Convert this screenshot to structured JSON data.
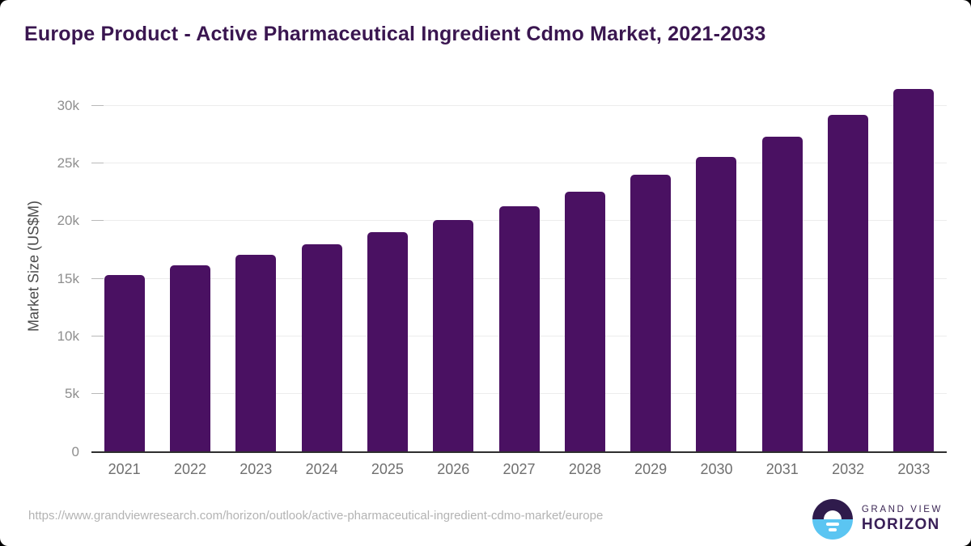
{
  "header": {
    "title": "Europe Product - Active Pharmaceutical Ingredient Cdmo Market, 2021-2033"
  },
  "chart_data": {
    "type": "bar",
    "title": "Europe Product - Active Pharmaceutical Ingredient Cdmo Market, 2021-2033",
    "categories": [
      "2021",
      "2022",
      "2023",
      "2024",
      "2025",
      "2026",
      "2027",
      "2028",
      "2029",
      "2030",
      "2031",
      "2032",
      "2033"
    ],
    "values": [
      15350,
      16150,
      17050,
      18000,
      19050,
      20100,
      21300,
      22550,
      24000,
      25550,
      27350,
      29200,
      31450
    ],
    "xlabel": "",
    "ylabel": "Market Size (US$M)",
    "ylim": [
      0,
      30000
    ],
    "yticks": [
      {
        "value": 0,
        "label": "0"
      },
      {
        "value": 5000,
        "label": "5k"
      },
      {
        "value": 10000,
        "label": "10k"
      },
      {
        "value": 15000,
        "label": "15k"
      },
      {
        "value": 20000,
        "label": "20k"
      },
      {
        "value": 25000,
        "label": "25k"
      },
      {
        "value": 30000,
        "label": "30k"
      }
    ],
    "grid": "horizontal",
    "legend": "none",
    "bar_color": "#4A1162"
  },
  "footer": {
    "source_url": "https://www.grandviewresearch.com/horizon/outlook/active-pharmaceutical-ingredient-cdmo-market/europe",
    "logo": {
      "icon": "horizon-sunrise-icon",
      "line1": "GRAND VIEW",
      "line2": "HORIZON",
      "colors": {
        "circle_top": "#2F1B4C",
        "circle_bottom": "#5BC5F2",
        "text": "#3A2058"
      }
    }
  }
}
